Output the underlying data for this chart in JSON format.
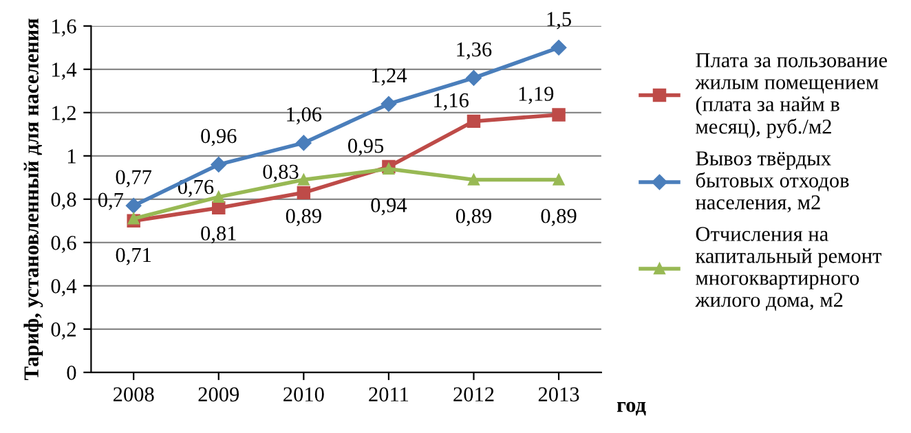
{
  "chart_data": {
    "type": "line",
    "ylabel": "Тариф, установленный для населения",
    "xlabel": "год",
    "categories": [
      "2008",
      "2009",
      "2010",
      "2011",
      "2012",
      "2013"
    ],
    "series": [
      {
        "name": "Плата за пользование\nжилым помещением\n(плата за найм в\nмесяц), руб./м2",
        "color": "#be4b48",
        "marker": "square",
        "values": [
          0.7,
          0.76,
          0.83,
          0.95,
          1.16,
          1.19
        ],
        "value_labels": [
          "0,7",
          "0,76",
          "0,83",
          "0,95",
          "1,16",
          "1,19"
        ]
      },
      {
        "name": "Вывоз твёрдых\nбытовых отходов\nнаселения, м2",
        "color": "#4a7ebb",
        "marker": "diamond",
        "values": [
          0.77,
          0.96,
          1.06,
          1.24,
          1.36,
          1.5
        ],
        "value_labels": [
          "0,77",
          "0,96",
          "1,06",
          "1,24",
          "1,36",
          "1,5"
        ]
      },
      {
        "name": "Отчисления на\nкапитальный ремонт\nмногоквартирного\nжилого дома, м2",
        "color": "#98b954",
        "marker": "triangle",
        "values": [
          0.71,
          0.81,
          0.89,
          0.94,
          0.89,
          0.89
        ],
        "value_labels": [
          "0,71",
          "0,81",
          "0,89",
          "0,94",
          "0,89",
          "0,89"
        ]
      }
    ],
    "ylim": [
      0,
      1.6
    ],
    "yticks": [
      0,
      {
        "value": 0.2,
        "label": "0,2"
      },
      {
        "value": 0.4,
        "label": "0,4"
      },
      {
        "value": 0.6,
        "label": "0,6"
      },
      {
        "value": 0.8,
        "label": "0,8"
      },
      1,
      {
        "value": 1.2,
        "label": "1,2"
      },
      {
        "value": 1.4,
        "label": "1,4"
      },
      {
        "value": 1.6,
        "label": "1,6"
      }
    ],
    "grid": "y",
    "legend": "right",
    "line_style": "solid"
  }
}
